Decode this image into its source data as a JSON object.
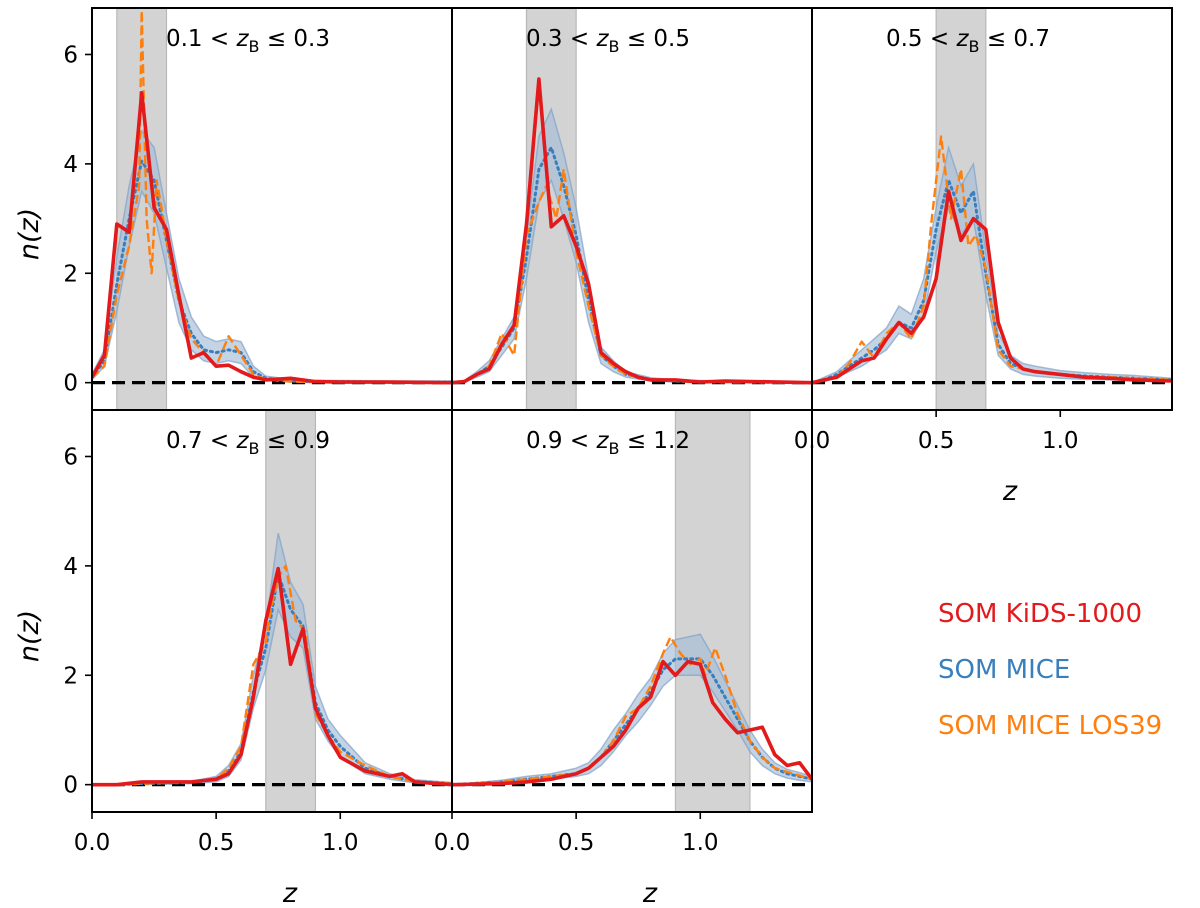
{
  "chart_data": {
    "type": "line",
    "xlabel": "z",
    "ylabel": "n(z)",
    "xlim": [
      0,
      1.45
    ],
    "ylim": [
      -0.5,
      6.85
    ],
    "xticks": [
      0.0,
      0.5,
      1.0
    ],
    "xtick_labels": [
      "0.0",
      "0.5",
      "1.0"
    ],
    "yticks": [
      0,
      2,
      4,
      6
    ],
    "ytick_labels": [
      "0",
      "2",
      "4",
      "6"
    ],
    "colors": {
      "kids": "#e31a1c",
      "mice": "#3a7fbd",
      "los": "#ff7f0e",
      "band": "#a6bdd7",
      "bin": "#d3d3d3"
    },
    "legend": {
      "placement": "right",
      "entries": [
        {
          "label": "SOM KiDS-1000",
          "color": "#e31a1c"
        },
        {
          "label": "SOM MICE",
          "color": "#3a7fbd"
        },
        {
          "label": "SOM MICE LOS39",
          "color": "#ff7f0e"
        }
      ]
    },
    "panels": [
      {
        "title": "0.1 < z_B ≤ 0.3",
        "title_parts": [
          "0.1 < ",
          "z",
          "B",
          " ≤ 0.3"
        ],
        "bin": [
          0.1,
          0.3
        ],
        "kids": {
          "x": [
            0.0,
            0.05,
            0.1,
            0.15,
            0.2,
            0.25,
            0.3,
            0.35,
            0.4,
            0.45,
            0.5,
            0.55,
            0.6,
            0.65,
            0.7,
            0.8,
            0.9,
            1.0,
            1.2,
            1.45
          ],
          "y": [
            0.1,
            0.5,
            2.9,
            2.75,
            5.3,
            3.2,
            2.8,
            1.6,
            0.45,
            0.55,
            0.3,
            0.32,
            0.2,
            0.1,
            0.05,
            0.08,
            0.02,
            0.01,
            0.01,
            0.0
          ]
        },
        "mice": {
          "x": [
            0.0,
            0.05,
            0.1,
            0.15,
            0.2,
            0.25,
            0.3,
            0.35,
            0.4,
            0.45,
            0.5,
            0.55,
            0.6,
            0.65,
            0.7,
            0.8,
            0.9,
            1.0,
            1.2,
            1.45
          ],
          "y": [
            0.1,
            0.4,
            1.8,
            3.0,
            4.05,
            3.7,
            2.6,
            1.5,
            0.9,
            0.6,
            0.55,
            0.6,
            0.55,
            0.2,
            0.08,
            0.03,
            0.02,
            0.02,
            0.01,
            0.01
          ],
          "lo": [
            0.05,
            0.3,
            1.3,
            2.5,
            3.5,
            3.1,
            2.1,
            1.1,
            0.6,
            0.4,
            0.35,
            0.4,
            0.35,
            0.1,
            0.04,
            0.01,
            0.0,
            0.0,
            0.0,
            0.0
          ],
          "hi": [
            0.15,
            0.6,
            2.3,
            3.6,
            4.6,
            4.3,
            3.1,
            1.9,
            1.2,
            0.85,
            0.75,
            0.8,
            0.75,
            0.3,
            0.12,
            0.06,
            0.04,
            0.04,
            0.03,
            0.03
          ]
        },
        "los": {
          "x": [
            0.0,
            0.05,
            0.1,
            0.15,
            0.19,
            0.2,
            0.22,
            0.24,
            0.26,
            0.28,
            0.3,
            0.35,
            0.4,
            0.45,
            0.5,
            0.55,
            0.6,
            0.65,
            0.7,
            0.8,
            1.0,
            1.45
          ],
          "y": [
            0.1,
            0.3,
            1.6,
            2.5,
            3.6,
            6.8,
            3.0,
            2.0,
            3.7,
            3.2,
            2.6,
            1.5,
            0.8,
            0.55,
            0.3,
            0.85,
            0.5,
            0.15,
            0.06,
            0.02,
            0.01,
            0.0
          ]
        }
      },
      {
        "title": "0.3 < z_B ≤ 0.5",
        "title_parts": [
          "0.3 < ",
          "z",
          "B",
          " ≤ 0.5"
        ],
        "bin": [
          0.3,
          0.5
        ],
        "kids": {
          "x": [
            0.0,
            0.05,
            0.1,
            0.15,
            0.2,
            0.25,
            0.3,
            0.35,
            0.4,
            0.45,
            0.5,
            0.55,
            0.6,
            0.65,
            0.7,
            0.75,
            0.8,
            0.9,
            1.0,
            1.1,
            1.45
          ],
          "y": [
            0.0,
            0.02,
            0.15,
            0.25,
            0.7,
            1.05,
            2.9,
            5.55,
            2.85,
            3.05,
            2.5,
            1.8,
            0.55,
            0.35,
            0.2,
            0.1,
            0.05,
            0.05,
            0.01,
            0.03,
            0.0
          ]
        },
        "mice": {
          "x": [
            0.0,
            0.05,
            0.1,
            0.15,
            0.2,
            0.25,
            0.3,
            0.35,
            0.4,
            0.45,
            0.5,
            0.55,
            0.6,
            0.65,
            0.7,
            0.8,
            0.9,
            1.0,
            1.2,
            1.45
          ],
          "y": [
            0.0,
            0.02,
            0.15,
            0.3,
            0.65,
            1.0,
            2.3,
            3.9,
            4.3,
            3.6,
            2.7,
            1.5,
            0.5,
            0.3,
            0.15,
            0.06,
            0.03,
            0.02,
            0.01,
            0.0
          ],
          "lo": [
            0.0,
            0.01,
            0.1,
            0.2,
            0.5,
            0.8,
            1.9,
            3.3,
            3.7,
            3.0,
            2.2,
            1.1,
            0.35,
            0.2,
            0.1,
            0.03,
            0.01,
            0.0,
            0.0,
            0.0
          ],
          "hi": [
            0.0,
            0.04,
            0.2,
            0.4,
            0.8,
            1.2,
            2.7,
            4.5,
            5.0,
            4.2,
            3.2,
            1.9,
            0.65,
            0.4,
            0.2,
            0.09,
            0.05,
            0.04,
            0.02,
            0.01
          ]
        },
        "los": {
          "x": [
            0.0,
            0.05,
            0.1,
            0.15,
            0.2,
            0.25,
            0.3,
            0.35,
            0.38,
            0.42,
            0.45,
            0.5,
            0.55,
            0.6,
            0.65,
            0.7,
            0.8,
            1.0,
            1.45
          ],
          "y": [
            0.0,
            0.02,
            0.15,
            0.3,
            0.9,
            0.5,
            2.7,
            3.3,
            3.6,
            3.0,
            3.9,
            2.4,
            1.4,
            0.5,
            0.3,
            0.15,
            0.05,
            0.01,
            0.0
          ]
        }
      },
      {
        "title": "0.5 < z_B ≤ 0.7",
        "title_parts": [
          "0.5 < ",
          "z",
          "B",
          " ≤ 0.7"
        ],
        "bin": [
          0.5,
          0.7
        ],
        "kids": {
          "x": [
            0.0,
            0.05,
            0.1,
            0.15,
            0.2,
            0.25,
            0.3,
            0.35,
            0.4,
            0.45,
            0.5,
            0.55,
            0.6,
            0.65,
            0.7,
            0.75,
            0.8,
            0.85,
            0.9,
            1.0,
            1.1,
            1.2,
            1.3,
            1.45
          ],
          "y": [
            0.0,
            0.05,
            0.1,
            0.25,
            0.4,
            0.45,
            0.8,
            1.1,
            0.9,
            1.2,
            1.9,
            3.5,
            2.6,
            3.0,
            2.8,
            1.1,
            0.45,
            0.25,
            0.2,
            0.15,
            0.1,
            0.08,
            0.05,
            0.03
          ]
        },
        "mice": {
          "x": [
            0.0,
            0.05,
            0.1,
            0.15,
            0.2,
            0.25,
            0.3,
            0.35,
            0.4,
            0.45,
            0.5,
            0.55,
            0.6,
            0.65,
            0.7,
            0.75,
            0.8,
            0.85,
            0.9,
            1.0,
            1.1,
            1.2,
            1.3,
            1.45
          ],
          "y": [
            0.0,
            0.05,
            0.15,
            0.3,
            0.45,
            0.6,
            0.8,
            1.1,
            1.0,
            1.5,
            2.8,
            3.7,
            3.1,
            3.5,
            2.0,
            0.7,
            0.35,
            0.25,
            0.2,
            0.15,
            0.12,
            0.1,
            0.08,
            0.05
          ],
          "lo": [
            0.0,
            0.02,
            0.1,
            0.2,
            0.3,
            0.45,
            0.6,
            0.9,
            0.8,
            1.2,
            2.4,
            3.2,
            2.7,
            3.0,
            1.6,
            0.5,
            0.25,
            0.15,
            0.12,
            0.08,
            0.06,
            0.05,
            0.04,
            0.02
          ],
          "hi": [
            0.0,
            0.1,
            0.2,
            0.4,
            0.6,
            0.8,
            1.0,
            1.4,
            1.25,
            1.9,
            3.2,
            4.3,
            3.6,
            4.0,
            2.4,
            0.9,
            0.5,
            0.35,
            0.3,
            0.22,
            0.18,
            0.15,
            0.13,
            0.08
          ]
        },
        "los": {
          "x": [
            0.0,
            0.05,
            0.1,
            0.15,
            0.2,
            0.25,
            0.3,
            0.35,
            0.4,
            0.45,
            0.48,
            0.52,
            0.56,
            0.6,
            0.63,
            0.66,
            0.7,
            0.75,
            0.8,
            0.9,
            1.0,
            1.1,
            1.2,
            1.3,
            1.45
          ],
          "y": [
            0.0,
            0.05,
            0.1,
            0.35,
            0.75,
            0.45,
            0.9,
            1.1,
            0.8,
            1.4,
            2.9,
            4.5,
            3.0,
            3.9,
            2.5,
            2.7,
            2.1,
            0.6,
            0.3,
            0.2,
            0.15,
            0.1,
            0.1,
            0.08,
            0.05
          ]
        }
      },
      {
        "title": "0.7 < z_B ≤ 0.9",
        "title_parts": [
          "0.7 < ",
          "z",
          "B",
          " ≤ 0.9"
        ],
        "bin": [
          0.7,
          0.9
        ],
        "kids": {
          "x": [
            0.0,
            0.1,
            0.2,
            0.3,
            0.4,
            0.5,
            0.55,
            0.6,
            0.65,
            0.7,
            0.75,
            0.8,
            0.85,
            0.9,
            0.95,
            1.0,
            1.1,
            1.2,
            1.25,
            1.3,
            1.45
          ],
          "y": [
            0.0,
            0.0,
            0.05,
            0.05,
            0.05,
            0.1,
            0.2,
            0.55,
            1.6,
            3.0,
            3.95,
            2.2,
            2.85,
            1.4,
            0.9,
            0.5,
            0.25,
            0.15,
            0.2,
            0.05,
            0.0
          ]
        },
        "mice": {
          "x": [
            0.0,
            0.1,
            0.2,
            0.3,
            0.4,
            0.5,
            0.55,
            0.6,
            0.65,
            0.7,
            0.75,
            0.8,
            0.85,
            0.9,
            0.95,
            1.0,
            1.1,
            1.2,
            1.3,
            1.45
          ],
          "y": [
            0.0,
            0.0,
            0.02,
            0.03,
            0.04,
            0.1,
            0.25,
            0.6,
            1.7,
            2.5,
            3.85,
            3.2,
            2.9,
            1.5,
            1.0,
            0.7,
            0.3,
            0.15,
            0.06,
            0.02
          ],
          "lo": [
            0.0,
            0.0,
            0.0,
            0.01,
            0.02,
            0.05,
            0.15,
            0.45,
            1.4,
            2.1,
            3.2,
            2.7,
            2.5,
            1.2,
            0.8,
            0.5,
            0.2,
            0.1,
            0.03,
            0.0
          ],
          "hi": [
            0.0,
            0.01,
            0.04,
            0.05,
            0.06,
            0.15,
            0.35,
            0.75,
            2.0,
            2.9,
            4.6,
            3.7,
            3.3,
            1.8,
            1.2,
            0.9,
            0.4,
            0.2,
            0.09,
            0.04
          ]
        },
        "los": {
          "x": [
            0.0,
            0.1,
            0.2,
            0.3,
            0.4,
            0.5,
            0.55,
            0.6,
            0.65,
            0.7,
            0.72,
            0.75,
            0.78,
            0.82,
            0.86,
            0.9,
            0.95,
            1.0,
            1.1,
            1.2,
            1.3,
            1.45
          ],
          "y": [
            0.0,
            0.0,
            0.02,
            0.03,
            0.04,
            0.1,
            0.3,
            0.7,
            2.2,
            2.6,
            3.2,
            3.8,
            4.0,
            3.0,
            2.8,
            1.3,
            0.9,
            0.6,
            0.35,
            0.15,
            0.05,
            0.02
          ]
        }
      },
      {
        "title": "0.9 < z_B ≤ 1.2",
        "title_parts": [
          "0.9 < ",
          "z",
          "B",
          " ≤ 1.2"
        ],
        "bin": [
          0.9,
          1.2
        ],
        "kids": {
          "x": [
            0.0,
            0.2,
            0.3,
            0.4,
            0.5,
            0.55,
            0.6,
            0.65,
            0.7,
            0.75,
            0.8,
            0.85,
            0.9,
            0.95,
            1.0,
            1.05,
            1.1,
            1.15,
            1.2,
            1.25,
            1.3,
            1.35,
            1.4,
            1.45
          ],
          "y": [
            0.0,
            0.02,
            0.05,
            0.1,
            0.2,
            0.3,
            0.5,
            0.7,
            1.0,
            1.4,
            1.6,
            2.25,
            2.0,
            2.25,
            2.2,
            1.5,
            1.2,
            0.95,
            1.0,
            1.05,
            0.55,
            0.35,
            0.4,
            0.1
          ]
        },
        "mice": {
          "x": [
            0.0,
            0.2,
            0.3,
            0.4,
            0.5,
            0.55,
            0.6,
            0.65,
            0.7,
            0.75,
            0.8,
            0.85,
            0.9,
            0.95,
            1.0,
            1.05,
            1.1,
            1.15,
            1.2,
            1.25,
            1.3,
            1.35,
            1.4,
            1.45
          ],
          "y": [
            0.0,
            0.05,
            0.1,
            0.15,
            0.2,
            0.3,
            0.5,
            0.8,
            1.1,
            1.4,
            1.7,
            2.1,
            2.3,
            2.3,
            2.3,
            2.0,
            1.6,
            1.2,
            0.8,
            0.5,
            0.3,
            0.2,
            0.15,
            0.1
          ],
          "lo": [
            0.0,
            0.02,
            0.05,
            0.1,
            0.15,
            0.2,
            0.35,
            0.6,
            0.9,
            1.15,
            1.45,
            1.8,
            2.0,
            2.0,
            2.0,
            1.7,
            1.35,
            1.0,
            0.6,
            0.35,
            0.2,
            0.12,
            0.08,
            0.05
          ],
          "hi": [
            0.0,
            0.08,
            0.15,
            0.2,
            0.3,
            0.4,
            0.65,
            1.0,
            1.3,
            1.65,
            1.95,
            2.4,
            2.65,
            2.7,
            2.75,
            2.35,
            1.9,
            1.45,
            1.0,
            0.65,
            0.4,
            0.28,
            0.22,
            0.15
          ]
        },
        "los": {
          "x": [
            0.0,
            0.2,
            0.3,
            0.4,
            0.5,
            0.55,
            0.6,
            0.65,
            0.7,
            0.75,
            0.8,
            0.85,
            0.88,
            0.92,
            0.96,
            1.0,
            1.02,
            1.06,
            1.1,
            1.15,
            1.2,
            1.25,
            1.3,
            1.45
          ],
          "y": [
            0.0,
            0.05,
            0.1,
            0.15,
            0.2,
            0.3,
            0.5,
            0.8,
            1.25,
            1.4,
            1.8,
            2.4,
            2.7,
            2.4,
            2.2,
            2.3,
            2.0,
            2.5,
            2.0,
            1.3,
            0.8,
            0.5,
            0.3,
            0.1
          ]
        }
      }
    ]
  }
}
